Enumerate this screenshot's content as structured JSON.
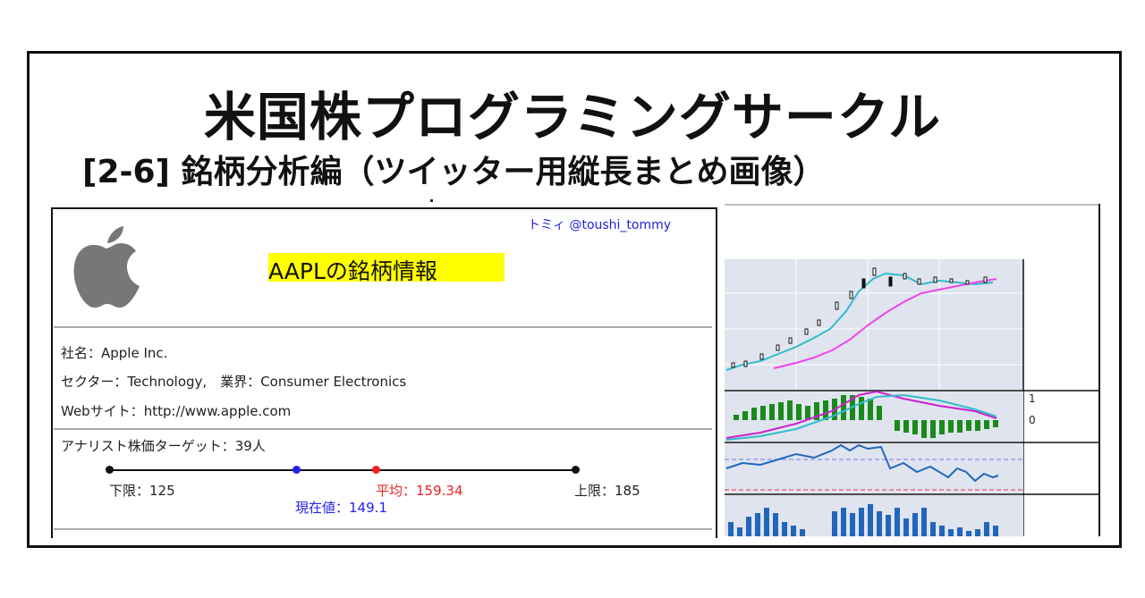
{
  "header": {
    "title": "米国株プログラミングサークル",
    "subtitle": "[2-6] 銘柄分析編（ツイッター用縦長まとめ画像）"
  },
  "card": {
    "author": "トミィ @toushi_tommy",
    "logo": "apple-logo-icon",
    "title": "AAPLの銘柄情報",
    "company": "社名：Apple Inc.",
    "sector": "セクター：Technology,　業界：Consumer Electronics",
    "web": "Webサイト：http://www.apple.com",
    "analyst": "アナリスト株価ターゲット：39人",
    "gauge": {
      "low_label": "下限：125",
      "avg_label": "平均：159.34",
      "high_label": "上限：185",
      "current_label": "現在値：149.1",
      "low": 125,
      "avg": 159.34,
      "high": 185,
      "current": 149.1,
      "colors": {
        "line": "#111111",
        "current": "#2222ee",
        "avg": "#ee2222"
      }
    }
  },
  "chart_data": {
    "type": "line",
    "axis_labels": {
      "macd_top": "1",
      "macd_zero": "0"
    },
    "panels": [
      "candlestick-price",
      "macd",
      "rsi",
      "volume"
    ]
  }
}
